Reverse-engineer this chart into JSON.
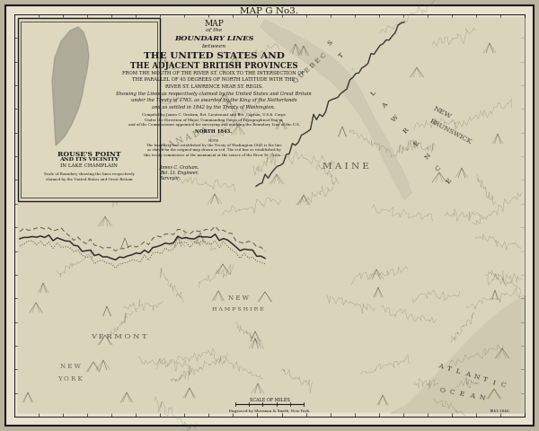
{
  "title_top": "MAP G No3.",
  "outer_bg": "#b8b4a0",
  "page_bg": "#e8e3cf",
  "map_bg": "#ddd8be",
  "border_color": "#1a1a1a",
  "text_color": "#1a1a1a",
  "map_text_color": "#2a2520",
  "river_color": "#aaa89a",
  "land_color": "#d8d3bb",
  "inset_title_lines": [
    "ROUSE'S POINT",
    "AND ITS VICINITY",
    "IN LAKE CHAMPLAIN"
  ],
  "fig_width": 6.0,
  "fig_height": 4.8
}
